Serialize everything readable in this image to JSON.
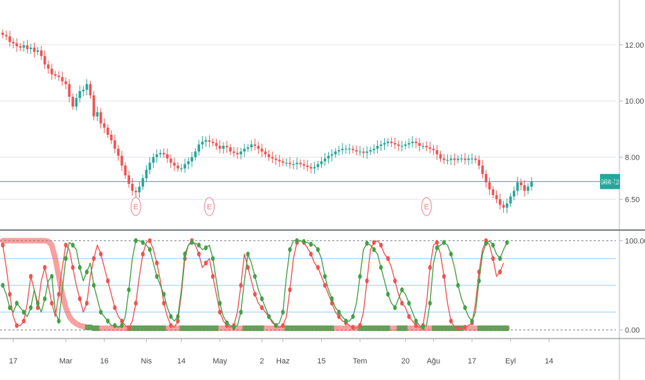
{
  "chart_data": [
    {
      "type": "candlestick",
      "panel": "price",
      "symbol": "GARAN",
      "last_value": "7.13",
      "last_label": "GARAN - 7.13",
      "ylim": [
        5.6,
        13.3
      ],
      "y_ticks": [
        {
          "value": 12.0,
          "label": "12.00"
        },
        {
          "value": 10.0,
          "label": "10.00"
        },
        {
          "value": 8.0,
          "label": "8.00"
        },
        {
          "value": 6.5,
          "label": "6.50"
        }
      ],
      "closes": [
        12.35,
        12.3,
        12.1,
        12.05,
        11.95,
        11.9,
        11.98,
        11.85,
        11.9,
        11.75,
        11.8,
        11.6,
        11.3,
        11.15,
        10.95,
        10.9,
        10.85,
        10.7,
        10.6,
        10.15,
        9.8,
        10.1,
        10.35,
        10.4,
        10.6,
        10.2,
        9.45,
        9.6,
        9.2,
        9.05,
        8.8,
        8.6,
        8.3,
        8.05,
        7.7,
        7.35,
        7.05,
        6.8,
        6.75,
        6.95,
        7.25,
        7.55,
        7.8,
        8.0,
        8.1,
        8.15,
        8.1,
        7.95,
        7.8,
        7.7,
        7.6,
        7.6,
        7.75,
        7.85,
        8.0,
        8.2,
        8.45,
        8.55,
        8.6,
        8.55,
        8.5,
        8.4,
        8.3,
        8.4,
        8.35,
        8.2,
        8.15,
        8.1,
        8.2,
        8.3,
        8.35,
        8.45,
        8.4,
        8.3,
        8.2,
        8.1,
        8.0,
        7.95,
        7.9,
        7.85,
        7.8,
        7.8,
        7.75,
        7.75,
        7.8,
        7.75,
        7.7,
        7.65,
        7.6,
        7.65,
        7.75,
        7.85,
        7.95,
        8.05,
        8.1,
        8.2,
        8.25,
        8.3,
        8.3,
        8.3,
        8.25,
        8.2,
        8.2,
        8.15,
        8.2,
        8.25,
        8.3,
        8.4,
        8.45,
        8.5,
        8.55,
        8.5,
        8.45,
        8.4,
        8.4,
        8.45,
        8.5,
        8.55,
        8.5,
        8.4,
        8.4,
        8.35,
        8.3,
        8.25,
        8.1,
        7.95,
        7.9,
        7.9,
        7.95,
        7.9,
        7.95,
        7.95,
        7.9,
        7.95,
        7.95,
        7.9,
        7.7,
        7.4,
        7.1,
        6.85,
        6.65,
        6.5,
        6.3,
        6.2,
        6.35,
        6.6,
        6.8,
        7.1,
        7.0,
        6.8,
        6.95,
        7.13
      ],
      "earnings_markers": [
        {
          "index": 38,
          "label": "E"
        },
        {
          "index": 59,
          "label": "E"
        },
        {
          "index": 121,
          "label": "E"
        }
      ],
      "x_ticks": [
        {
          "index": 3,
          "label": "17"
        },
        {
          "index": 18,
          "label": "Mar"
        },
        {
          "index": 29,
          "label": "16"
        },
        {
          "index": 41,
          "label": "Nis"
        },
        {
          "index": 51,
          "label": "14"
        },
        {
          "index": 62,
          "label": "May"
        },
        {
          "index": 74,
          "label": "2"
        },
        {
          "index": 80,
          "label": "Haz"
        },
        {
          "index": 91,
          "label": "15"
        },
        {
          "index": 102,
          "label": "Tem"
        },
        {
          "index": 115,
          "label": "20"
        },
        {
          "index": 123,
          "label": "Ağu"
        },
        {
          "index": 134,
          "label": "17"
        },
        {
          "index": 145,
          "label": "Eyl"
        },
        {
          "index": 156,
          "label": "14"
        }
      ]
    },
    {
      "type": "line",
      "panel": "oscillator",
      "ylim": [
        -8,
        108
      ],
      "y_ticks": [
        {
          "value": 100,
          "label": "100.00"
        },
        {
          "value": 0,
          "label": "0.00"
        }
      ],
      "levels": [
        80,
        50,
        20
      ],
      "series": [
        {
          "name": "",
          "color": "#ef5350",
          "values": [
            95,
            70,
            40,
            15,
            5,
            5,
            10,
            30,
            60,
            45,
            25,
            55,
            70,
            50,
            30,
            15,
            40,
            70,
            95,
            90,
            70,
            50,
            35,
            20,
            30,
            60,
            80,
            95,
            85,
            70,
            55,
            40,
            25,
            15,
            10,
            5,
            2,
            10,
            30,
            60,
            85,
            98,
            100,
            90,
            75,
            55,
            30,
            15,
            5,
            3,
            10,
            40,
            80,
            95,
            100,
            95,
            85,
            70,
            75,
            80,
            60,
            40,
            20,
            10,
            5,
            3,
            5,
            20,
            50,
            85,
            70,
            55,
            40,
            30,
            25,
            20,
            15,
            8,
            5,
            3,
            5,
            15,
            45,
            80,
            98,
            100,
            98,
            92,
            85,
            75,
            70,
            60,
            50,
            40,
            30,
            20,
            15,
            10,
            8,
            5,
            3,
            2,
            5,
            20,
            55,
            90,
            98,
            100,
            95,
            85,
            80,
            70,
            55,
            40,
            30,
            25,
            15,
            10,
            5,
            3,
            5,
            30,
            70,
            95,
            98,
            85,
            60,
            30,
            10,
            3,
            2,
            2,
            3,
            5,
            8,
            30,
            65,
            90,
            100,
            95,
            80,
            60,
            65,
            75
          ]
        },
        {
          "name": "",
          "color": "#43a047",
          "values": [
            50,
            40,
            25,
            20,
            30,
            25,
            20,
            15,
            25,
            45,
            30,
            20,
            35,
            55,
            60,
            20,
            10,
            45,
            80,
            98,
            95,
            90,
            70,
            55,
            65,
            75,
            50,
            35,
            20,
            15,
            10,
            5,
            5,
            3,
            5,
            15,
            45,
            80,
            100,
            100,
            98,
            95,
            90,
            75,
            60,
            50,
            40,
            25,
            15,
            10,
            15,
            45,
            85,
            95,
            98,
            97,
            95,
            90,
            92,
            95,
            80,
            55,
            30,
            15,
            8,
            5,
            3,
            5,
            20,
            55,
            85,
            75,
            60,
            45,
            35,
            25,
            15,
            10,
            5,
            8,
            20,
            60,
            90,
            100,
            100,
            100,
            99,
            98,
            96,
            95,
            90,
            80,
            60,
            45,
            35,
            25,
            20,
            15,
            10,
            10,
            15,
            30,
            60,
            90,
            97,
            95,
            90,
            85,
            70,
            55,
            40,
            30,
            25,
            35,
            45,
            40,
            30,
            20,
            10,
            5,
            3,
            5,
            30,
            75,
            92,
            95,
            98,
            95,
            85,
            70,
            50,
            35,
            25,
            15,
            10,
            20,
            55,
            85,
            97,
            100,
            95,
            85,
            80,
            90,
            98
          ]
        },
        {
          "name": "",
          "color": "#ef5350",
          "style": "band",
          "values": [
            100,
            100,
            100,
            100,
            100,
            100,
            100,
            100,
            100,
            100,
            100,
            100,
            100,
            99,
            95,
            80,
            60,
            40,
            25,
            15,
            10,
            7,
            5,
            4,
            3,
            3,
            2,
            2,
            2,
            2,
            2,
            2,
            2,
            2,
            2,
            2,
            2,
            2,
            2,
            2,
            2,
            2,
            2,
            2,
            2,
            2,
            2,
            2,
            2,
            2,
            2,
            2,
            2,
            2,
            2,
            2,
            2,
            2,
            2,
            2,
            2,
            2,
            2,
            2,
            2,
            2,
            2,
            2,
            2,
            2,
            2,
            2,
            2,
            2,
            2,
            2,
            2,
            2,
            2,
            2,
            2,
            2,
            2,
            2,
            2,
            2,
            2,
            2,
            2,
            2,
            2,
            2,
            2,
            2,
            2,
            2,
            2,
            2,
            2,
            2,
            2,
            2,
            2,
            2,
            2,
            2,
            2,
            2,
            2,
            2,
            2,
            2,
            2,
            2,
            2,
            2,
            2,
            2,
            2,
            2,
            2,
            2,
            2,
            2,
            2,
            2,
            2,
            2,
            2,
            2,
            2,
            2,
            2,
            2,
            2,
            2,
            2,
            2,
            2,
            2,
            2,
            2,
            2,
            2,
            2
          ]
        }
      ]
    }
  ],
  "colors": {
    "up": "#26a69a",
    "down": "#ef5350",
    "last_price": "#26a69a",
    "green_line": "#43a047",
    "red_line": "#ef5350",
    "level_lines": "#90caf9",
    "grid": "#e0e3eb",
    "marker": "#ee7d85"
  }
}
